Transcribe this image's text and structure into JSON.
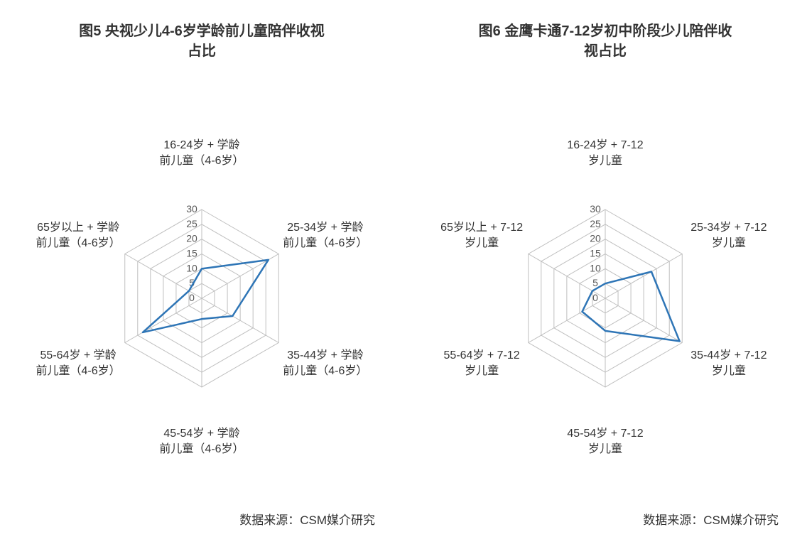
{
  "leftChart": {
    "type": "radar",
    "title": "图5 央视少儿4-6岁学龄前儿童陪伴收视\n占比",
    "source": "数据来源：CSM媒介研究",
    "axisMax": 30,
    "ticks": [
      0,
      5,
      10,
      15,
      20,
      25,
      30
    ],
    "tickFontSize": 14,
    "titleFontSize": 20,
    "labelFontSize": 16,
    "gridColor": "#bfbfbf",
    "seriesColor": "#2e75b6",
    "seriesLineWidth": 2.5,
    "backgroundColor": "#ffffff",
    "categories": [
      "16-24岁 + 学龄\n前儿童（4-6岁）",
      "25-34岁 + 学龄\n前儿童（4-6岁）",
      "35-44岁 + 学龄\n前儿童（4-6岁）",
      "45-54岁 + 学龄\n前儿童（4-6岁）",
      "55-64岁 + 学龄\n前儿童（4-6岁）",
      "65岁以上 + 学龄\n前儿童（4-6岁）"
    ],
    "values": [
      10,
      26,
      12,
      7,
      23,
      5
    ]
  },
  "rightChart": {
    "type": "radar",
    "title": "图6 金鹰卡通7-12岁初中阶段少儿陪伴收\n视占比",
    "source": "数据来源：CSM媒介研究",
    "axisMax": 30,
    "ticks": [
      0,
      5,
      10,
      15,
      20,
      25,
      30
    ],
    "tickFontSize": 14,
    "titleFontSize": 20,
    "labelFontSize": 16,
    "gridColor": "#bfbfbf",
    "seriesColor": "#2e75b6",
    "seriesLineWidth": 2.5,
    "backgroundColor": "#ffffff",
    "categories": [
      "16-24岁 + 7-12\n岁儿童",
      "25-34岁 + 7-12\n岁儿童",
      "35-44岁 + 7-12\n岁儿童",
      "45-54岁 + 7-12\n岁儿童",
      "55-64岁 + 7-12\n岁儿童",
      "65岁以上 + 7-12\n岁儿童"
    ],
    "values": [
      5,
      18,
      29,
      11,
      9,
      5
    ]
  }
}
